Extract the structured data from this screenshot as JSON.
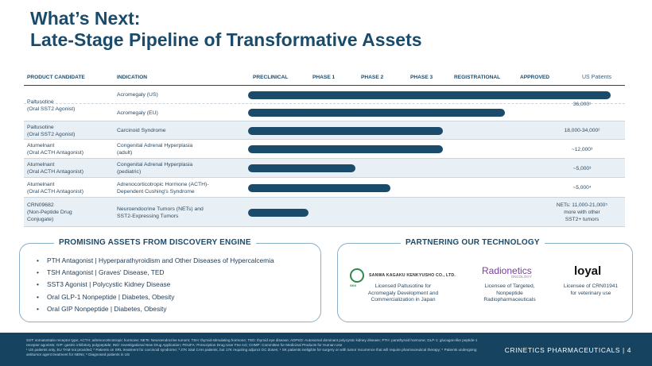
{
  "title": {
    "line1": "What’s Next:",
    "line2": "Late-Stage Pipeline of Transformative Assets"
  },
  "table": {
    "headers": {
      "product": "PRODUCT CANDIDATE",
      "indication": "INDICATION",
      "preclinical": "PRECLINICAL",
      "phase1": "PHASE 1",
      "phase2": "PHASE 2",
      "phase3": "PHASE 3",
      "registrational": "REGISTRATIONAL",
      "approved": "APPROVED",
      "us": "US Patients"
    },
    "rows": [
      {
        "product": "Paltusotine\n(Oral SST2 Agonist)",
        "indication": "Acromegaly (US)",
        "progress": 0.995,
        "patients": ""
      },
      {
        "product": "",
        "indication": "Acromegaly (EU)",
        "progress": 0.705,
        "patients": "36,000¹"
      },
      {
        "product": "Paltusotine\n(Oral SST2 Agonist)",
        "indication": "Carcinoid Syndrome",
        "progress": 0.535,
        "patients": "18,000-34,000²"
      },
      {
        "product": "Atumelnant\n(Oral ACTH Antagonist)",
        "indication": "Congenital Adrenal Hyperplasia\n(adult)",
        "progress": 0.535,
        "patients": "~12,000³"
      },
      {
        "product": "Atumelnant\n(Oral ACTH Antagonist)",
        "indication": "Congenital Adrenal Hyperplasia\n(pediatric)",
        "progress": 0.295,
        "patients": "~5,000³"
      },
      {
        "product": "Atumelnant\n(Oral ACTH Antagonist)",
        "indication": "Adrenocorticotropic Hormone (ACTH)-\nDependent Cushing's Syndrome",
        "progress": 0.39,
        "patients": "~5,000⁴"
      },
      {
        "product": "CRN09682\n(Non-Peptide Drug\nConjugate)",
        "indication": "Neuroendocrine Tumors (NETs) and\nSST2-Expressing Tumors",
        "progress": 0.165,
        "patients": "NETs: 11,000-21,000⁵\nmore with other\nSST2+ tumors"
      }
    ]
  },
  "discovery": {
    "title": "PROMISING ASSETS FROM DISCOVERY ENGINE",
    "items": [
      "PTH Antagonist | Hyperparathyroidism and Other Diseases of Hypercalcemia",
      "TSH Antagonist | Graves' Disease, TED",
      "SST3 Agonist | Polycystic Kidney Disease",
      "Oral GLP-1 Nonpeptide | Diabetes, Obesity",
      "Oral GIP Nonpeptide | Diabetes, Obesity"
    ],
    "bullet": "•"
  },
  "partnering": {
    "title": "PARTNERING OUR TECHNOLOGY",
    "sanwa_logo": "SANWA KAGAKU KENKYUSHO CO., LTD.",
    "sanwa_mark": "SKK",
    "sanwa_desc": "Licensed Paltusotine for\nAcromegaly Development and\nCommercialization in Japan",
    "radio_logo": "Radionetics",
    "radio_sub": "ONCOLOGY",
    "radio_desc": "Licensee of Targeted,\nNonpeptide\nRadiopharmaceuticals",
    "loyal_logo": "loyal",
    "loyal_desc": "Licensee of CRN01941\nfor veterinary use"
  },
  "footer": {
    "notes": "SST: somatostatin receptor type; ACTH: adrenocorticotropic hormone; NETs: Neuroendocrine tumors; TSH: thyroid-stimulating hormone; TED: thyroid eye disease; ADPKD: Autosomal dominant polycystic kidney disease; PTH: parathyroid hormone; GLP-1: glucagon-like peptide-1 receptor agonists; GIP: gastric inhibitory polypeptide; IND: Investigational New Drug Application; PDUFA: Prescription Drug User Fee Act; CHMP: Committee for Medicinal Products for Human Use\n¹ US patients only, EU TAM not provided; ² Patients on SRL treatment for carcinoid syndrome; ³ 27K total CAH patients, but 17K requiring adjunct GC doses; ⁴ SK patients ineligible for surgery or with tumor recurrence that will require pharmaceutical therapy; ⁵ Patients undergoing antitumor agent treatment for NENs; ⁶ Diagnosed patients in US",
    "brand": "CRINETICS PHARMACEUTICALS",
    "page": "| 4"
  },
  "colors": {
    "primary": "#1b4b6b",
    "footer": "#16435f",
    "shade": "#e9f0f5"
  }
}
